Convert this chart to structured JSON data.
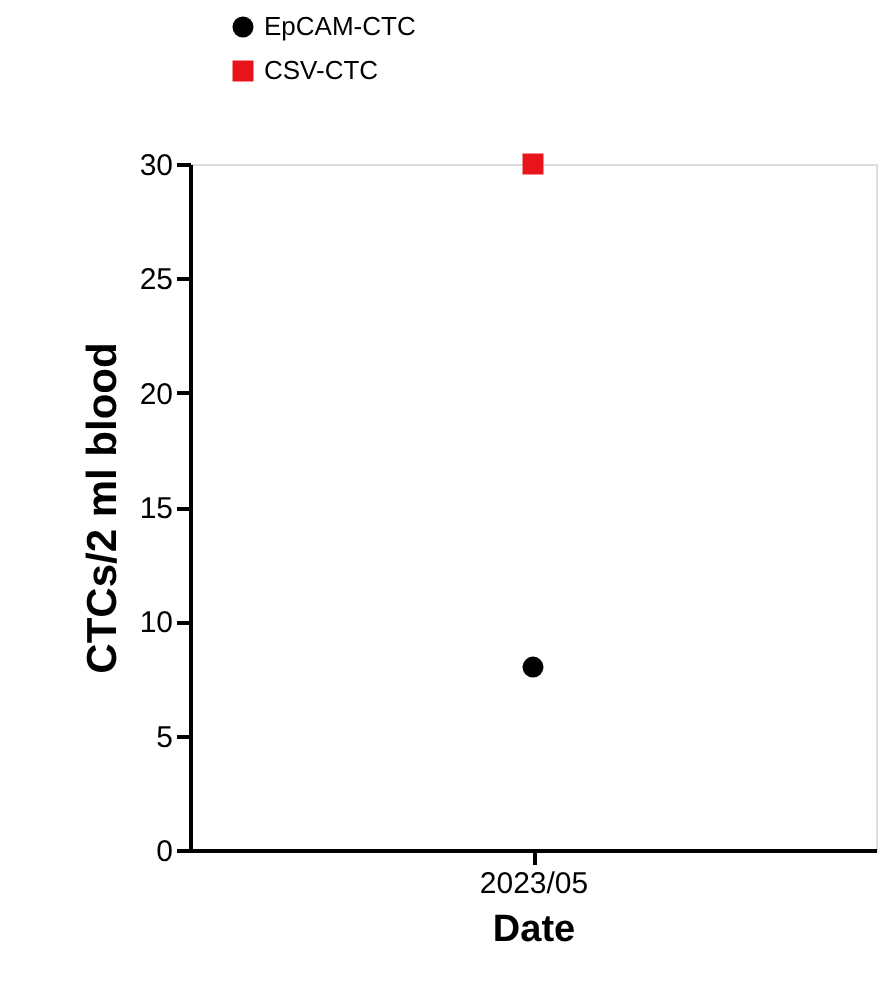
{
  "chart_data": {
    "type": "scatter",
    "categories": [
      "2023/05"
    ],
    "series": [
      {
        "name": "EpCAM-CTC",
        "color": "#000000",
        "marker": "circle",
        "values": [
          8
        ]
      },
      {
        "name": "CSV-CTC",
        "color": "#e8141b",
        "marker": "square",
        "values": [
          30
        ]
      }
    ],
    "xlabel": "Date",
    "ylabel": "CTCs/2 ml blood",
    "ylim": [
      0,
      30
    ],
    "yticks": [
      0,
      5,
      10,
      15,
      20,
      25,
      30
    ],
    "grid": false,
    "legend": "top left"
  }
}
